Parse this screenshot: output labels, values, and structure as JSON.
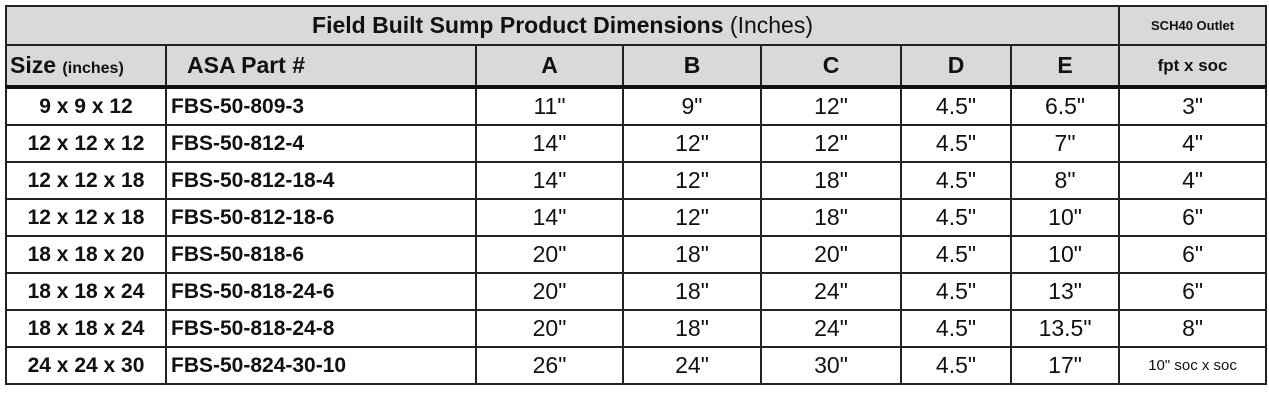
{
  "header": {
    "title": "Field Built Sump Product Dimensions",
    "title_unit": "(Inches)",
    "outlet_title": "SCH40 Outlet"
  },
  "columns": [
    "Size",
    "ASA Part #",
    "A",
    "B",
    "C",
    "D",
    "E",
    "fpt x soc"
  ],
  "size_unit": "(inches)",
  "rows": [
    [
      "9 x 9 x 12",
      "FBS-50-809-3",
      "11\"",
      "9\"",
      "12\"",
      "4.5\"",
      "6.5\"",
      "3\""
    ],
    [
      "12 x 12 x 12",
      "FBS-50-812-4",
      "14\"",
      "12\"",
      "12\"",
      "4.5\"",
      "7\"",
      "4\""
    ],
    [
      "12 x 12 x 18",
      "FBS-50-812-18-4",
      "14\"",
      "12\"",
      "18\"",
      "4.5\"",
      "8\"",
      "4\""
    ],
    [
      "12 x 12 x 18",
      "FBS-50-812-18-6",
      "14\"",
      "12\"",
      "18\"",
      "4.5\"",
      "10\"",
      "6\""
    ],
    [
      "18 x 18 x 20",
      "FBS-50-818-6",
      "20\"",
      "18\"",
      "20\"",
      "4.5\"",
      "10\"",
      "6\""
    ],
    [
      "18 x 18 x 24",
      "FBS-50-818-24-6",
      "20\"",
      "18\"",
      "24\"",
      "4.5\"",
      "13\"",
      "6\""
    ],
    [
      "18 x 18 x 24",
      "FBS-50-818-24-8",
      "20\"",
      "18\"",
      "24\"",
      "4.5\"",
      "13.5\"",
      "8\""
    ],
    [
      "24 x 24 x 30",
      "FBS-50-824-30-10",
      "26\"",
      "24\"",
      "30\"",
      "4.5\"",
      "17\"",
      "10\" soc x soc"
    ]
  ]
}
